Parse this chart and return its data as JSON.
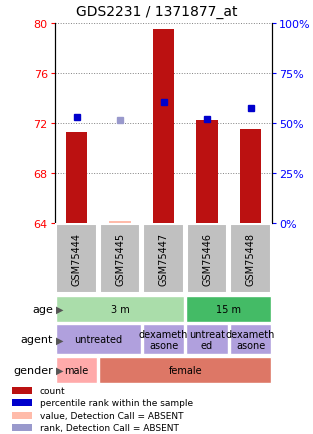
{
  "title": "GDS2231 / 1371877_at",
  "samples": [
    "GSM75444",
    "GSM75445",
    "GSM75447",
    "GSM75446",
    "GSM75448"
  ],
  "count_values": [
    71.3,
    64.15,
    79.5,
    72.2,
    71.5
  ],
  "count_base": 64,
  "rank_values": [
    72.45,
    72.2,
    73.7,
    72.35,
    73.2
  ],
  "rank_absent": [
    false,
    true,
    false,
    false,
    false
  ],
  "ylim": [
    64,
    80
  ],
  "yticks_left": [
    64,
    68,
    72,
    76,
    80
  ],
  "yticks_right": [
    0,
    25,
    50,
    75,
    100
  ],
  "bar_color": "#bb1111",
  "rank_color": "#0000cc",
  "rank_absent_color": "#9999cc",
  "count_absent_color": "#ffbbaa",
  "sample_bg_color": "#c0c0c0",
  "age_groups": [
    {
      "label": "3 m",
      "start": 0,
      "end": 3,
      "color": "#aaddaa"
    },
    {
      "label": "15 m",
      "start": 3,
      "end": 5,
      "color": "#44bb66"
    }
  ],
  "agent_groups": [
    {
      "label": "untreated",
      "start": 0,
      "end": 2,
      "color": "#b0a0dd"
    },
    {
      "label": "dexameth\nasone",
      "start": 2,
      "end": 3,
      "color": "#b0a0dd"
    },
    {
      "label": "untreat\ned",
      "start": 3,
      "end": 4,
      "color": "#b0a0dd"
    },
    {
      "label": "dexameth\nasone",
      "start": 4,
      "end": 5,
      "color": "#b0a0dd"
    }
  ],
  "gender_groups": [
    {
      "label": "male",
      "start": 0,
      "end": 1,
      "color": "#ffaaaa"
    },
    {
      "label": "female",
      "start": 1,
      "end": 5,
      "color": "#dd7766"
    }
  ],
  "legend_items": [
    {
      "color": "#bb1111",
      "label": "count"
    },
    {
      "color": "#0000cc",
      "label": "percentile rank within the sample"
    },
    {
      "color": "#ffbbaa",
      "label": "value, Detection Call = ABSENT"
    },
    {
      "color": "#9999cc",
      "label": "rank, Detection Call = ABSENT"
    }
  ]
}
